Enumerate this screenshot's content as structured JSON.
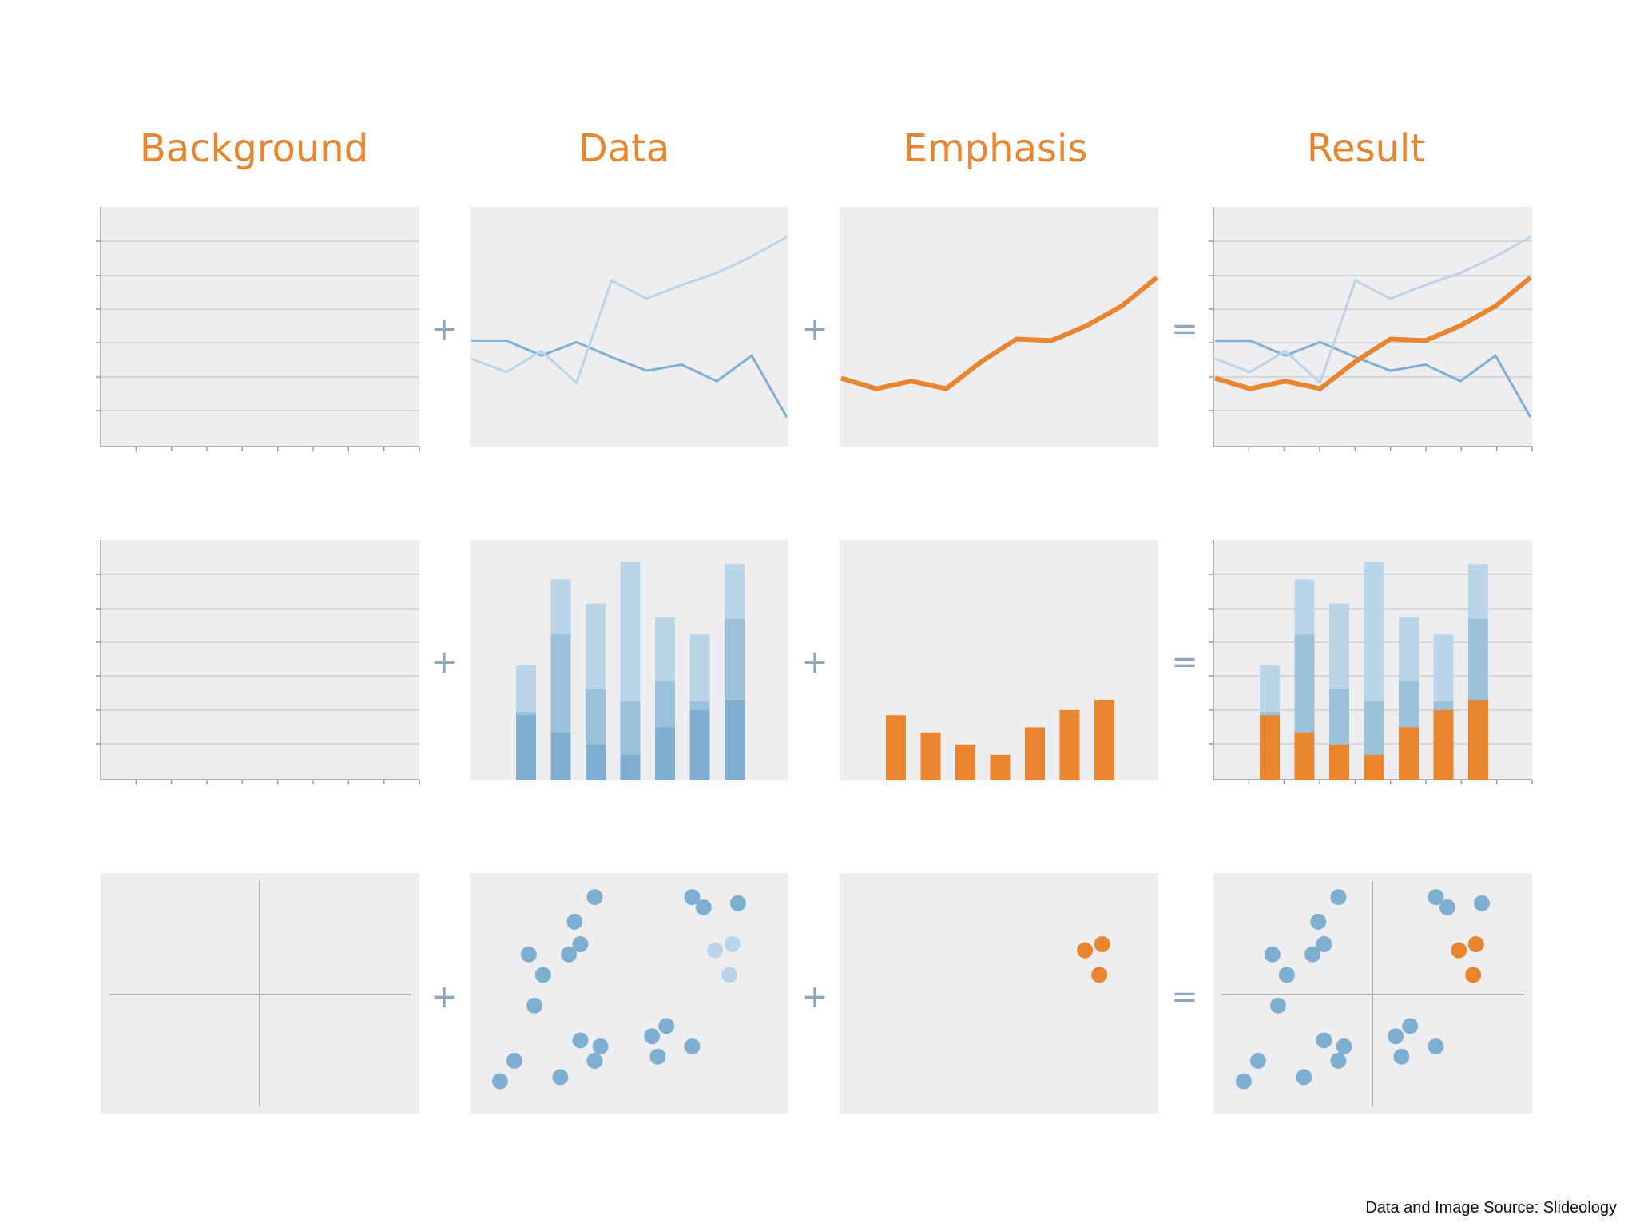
{
  "headers": [
    "Background",
    "Data",
    "Emphasis",
    "Result"
  ],
  "operators": [
    "+",
    "+",
    "="
  ],
  "source_note": "Data and Image Source: Slideology",
  "colors": {
    "accent": "#e8852e",
    "panel_bg": "#eeeef1",
    "blue_dark": "#7eafd0",
    "blue_mid": "#9cc2db",
    "blue_light": "#b9d5e7",
    "grid": "#cfcfd4",
    "axis": "#9a9a9a"
  },
  "chart_data": [
    {
      "type": "line",
      "x": [
        0,
        1,
        2,
        3,
        4,
        5,
        6,
        7,
        8,
        9
      ],
      "series": [
        {
          "values": [
            3.55,
            3.55,
            3.05,
            3.5,
            3.0,
            2.55,
            2.75,
            2.2,
            3.05,
            1.0
          ],
          "emphasis": false
        },
        {
          "values": [
            2.95,
            2.5,
            3.2,
            2.15,
            5.55,
            4.95,
            5.4,
            5.8,
            6.35,
            7.0
          ],
          "emphasis": false
        },
        {
          "values": [
            2.3,
            1.95,
            2.2,
            1.95,
            2.85,
            3.6,
            3.55,
            4.05,
            4.7,
            5.65
          ],
          "emphasis": true
        }
      ]
    },
    {
      "type": "bar",
      "categories": [
        "1",
        "2",
        "3",
        "4",
        "5",
        "6",
        "7"
      ],
      "series": [
        {
          "values": [
            1.9,
            1.4,
            1.05,
            0.75,
            1.55,
            2.05,
            2.35
          ],
          "emphasis": true
        },
        {
          "values": [
            2.0,
            4.25,
            2.65,
            2.3,
            2.9,
            2.3,
            4.7
          ],
          "emphasis": false
        },
        {
          "values": [
            3.35,
            5.85,
            5.15,
            6.35,
            4.75,
            4.25,
            6.3
          ],
          "emphasis": false
        }
      ]
    },
    {
      "type": "scatter",
      "points": [
        {
          "x": 0.15,
          "y": 0.7,
          "emphasis": false
        },
        {
          "x": 0.2,
          "y": 0.6,
          "emphasis": false
        },
        {
          "x": 0.17,
          "y": 0.45,
          "emphasis": false
        },
        {
          "x": 0.29,
          "y": 0.7,
          "emphasis": false
        },
        {
          "x": 0.33,
          "y": 0.75,
          "emphasis": false
        },
        {
          "x": 0.38,
          "y": 0.98,
          "emphasis": false
        },
        {
          "x": 0.31,
          "y": 0.86,
          "emphasis": false
        },
        {
          "x": 0.38,
          "y": 0.18,
          "emphasis": false
        },
        {
          "x": 0.33,
          "y": 0.28,
          "emphasis": false
        },
        {
          "x": 0.4,
          "y": 0.25,
          "emphasis": false
        },
        {
          "x": 0.26,
          "y": 0.1,
          "emphasis": false
        },
        {
          "x": 0.1,
          "y": 0.18,
          "emphasis": false
        },
        {
          "x": 0.05,
          "y": 0.08,
          "emphasis": false
        },
        {
          "x": 0.58,
          "y": 0.3,
          "emphasis": false
        },
        {
          "x": 0.63,
          "y": 0.35,
          "emphasis": false
        },
        {
          "x": 0.72,
          "y": 0.25,
          "emphasis": false
        },
        {
          "x": 0.6,
          "y": 0.2,
          "emphasis": false
        },
        {
          "x": 0.76,
          "y": 0.93,
          "emphasis": false
        },
        {
          "x": 0.88,
          "y": 0.95,
          "emphasis": false
        },
        {
          "x": 0.72,
          "y": 0.98,
          "emphasis": false
        },
        {
          "x": 0.8,
          "y": 0.72,
          "emphasis": true
        },
        {
          "x": 0.86,
          "y": 0.75,
          "emphasis": true
        },
        {
          "x": 0.85,
          "y": 0.6,
          "emphasis": true
        }
      ]
    }
  ]
}
